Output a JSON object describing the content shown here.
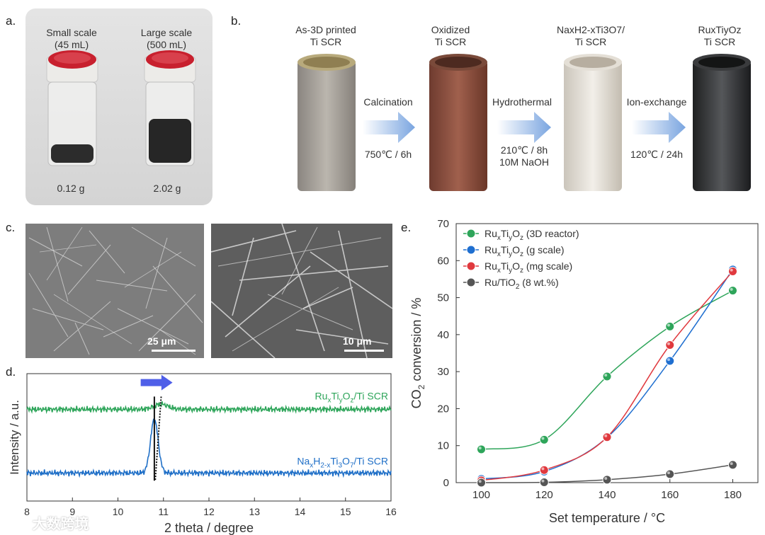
{
  "panels": {
    "a": "a.",
    "b": "b.",
    "c": "c.",
    "d": "d.",
    "e": "e."
  },
  "panel_a": {
    "small_title_1": "Small scale",
    "small_title_2": "(45 mL)",
    "large_title_1": "Large scale",
    "large_title_2": "(500 mL)",
    "small_mass": "0.12 g",
    "large_mass": "2.02 g"
  },
  "panel_b": {
    "s1_line1": "As-3D printed",
    "s1_line2": "Ti SCR",
    "s2_line1": "Oxidized",
    "s2_line2": "Ti SCR",
    "s3_line1": "NaxH2-xTi3O7/",
    "s3_line2": "Ti SCR",
    "s4_line1": "RuxTiyOz",
    "s4_line2": "Ti SCR",
    "step1_name": "Calcination",
    "step1_cond1": "750℃ / 6h",
    "step2_name": "Hydrothermal",
    "step2_cond1": "210℃ / 8h",
    "step2_cond2": "10M NaOH",
    "step3_name": "Ion-exchange",
    "step3_cond1": "120℃ / 24h"
  },
  "panel_c": {
    "scale_left": "25 μm",
    "scale_right": "10 μm"
  },
  "watermark": "大数跨境",
  "chart_data": [
    {
      "type": "line",
      "title": "",
      "xlabel": "2 theta / degree",
      "ylabel": "Intensity / a.u.",
      "xlim": [
        8,
        16
      ],
      "xticks": [
        8,
        9,
        10,
        11,
        12,
        13,
        14,
        15,
        16
      ],
      "series": [
        {
          "name": "RuxTiyOz/Ti SCR",
          "color": "#2ea55a",
          "baseline": 0.72,
          "peak_x": 10.95,
          "peak_height": 0.04
        },
        {
          "name": "NaxH2-xTi3O7/Ti SCR",
          "color": "#1f6fc7",
          "baseline": 0.22,
          "peak_x": 10.8,
          "peak_height": 0.42
        }
      ],
      "annotations": [
        "solid line at 10.8",
        "dotted line toward 10.95",
        "arrow indicating shift to higher angle"
      ]
    },
    {
      "type": "line",
      "title": "",
      "xlabel": "Set temperature / °C",
      "ylabel": "CO2 conversion / %",
      "xlim": [
        92,
        188
      ],
      "ylim": [
        0,
        70
      ],
      "xticks": [
        100,
        120,
        140,
        160,
        180
      ],
      "yticks": [
        0,
        10,
        20,
        30,
        40,
        50,
        60,
        70
      ],
      "x": [
        100,
        120,
        140,
        160,
        180
      ],
      "series": [
        {
          "name": "RuxTiyOz (3D reactor)",
          "color": "#2ea55a",
          "values": [
            9.0,
            11.6,
            28.7,
            42.2,
            51.9
          ]
        },
        {
          "name": "RuxTiyOz (g scale)",
          "color": "#1f6fd0",
          "values": [
            1.0,
            3.0,
            12.2,
            32.9,
            57.6
          ]
        },
        {
          "name": "RuxTiyOz (mg scale)",
          "color": "#e0393e",
          "values": [
            0.6,
            3.4,
            12.3,
            37.2,
            57.1
          ]
        },
        {
          "name": "Ru/TiO2 (8 wt.%)",
          "color": "#555555",
          "values": [
            0.0,
            0.1,
            0.8,
            2.3,
            4.8
          ]
        }
      ],
      "legend_position": "top-left"
    }
  ]
}
